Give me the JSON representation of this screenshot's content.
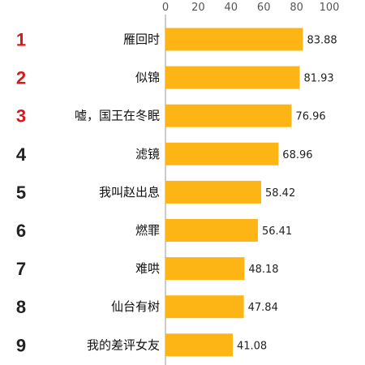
{
  "chart_data": {
    "type": "bar",
    "orientation": "horizontal",
    "ranks": [
      "1",
      "2",
      "3",
      "4",
      "5",
      "6",
      "7",
      "8",
      "9"
    ],
    "categories": [
      "雁回时",
      "似锦",
      "嘘，国王在冬眠",
      "滤镜",
      "我叫赵出息",
      "燃罪",
      "难哄",
      "仙台有树",
      "我的差评女友"
    ],
    "values": [
      83.88,
      81.93,
      76.96,
      68.96,
      58.42,
      56.41,
      48.18,
      47.84,
      41.08
    ],
    "value_labels": [
      "83.88",
      "81.93",
      "76.96",
      "68.96",
      "58.42",
      "56.41",
      "48.18",
      "47.84",
      "41.08"
    ],
    "x_ticks": [
      "0",
      "20",
      "40",
      "60",
      "80",
      "100"
    ],
    "xlim": [
      0,
      100
    ],
    "grid": false,
    "colors": {
      "bar": "#FDB515",
      "top_rank": "#D7191C",
      "rank": "#222222",
      "axis": "#999999"
    }
  }
}
